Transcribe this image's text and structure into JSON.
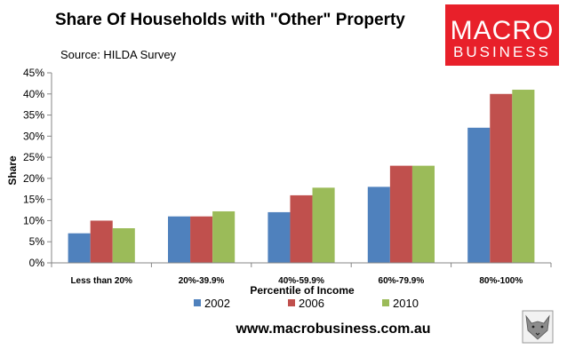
{
  "chart_data": {
    "type": "bar",
    "title": "Share Of Households with \"Other\" Property",
    "subtitle": "Source: HILDA Survey",
    "xlabel": "Percentile of Income",
    "ylabel": "Share",
    "categories": [
      "Less than 20%",
      "20%-39.9%",
      "40%-59.9%",
      "60%-79.9%",
      "80%-100%"
    ],
    "series": [
      {
        "name": "2002",
        "color": "#4F81BD",
        "values": [
          7,
          11,
          12,
          18,
          32
        ]
      },
      {
        "name": "2006",
        "color": "#C0504D",
        "values": [
          10,
          11,
          16,
          23,
          40
        ]
      },
      {
        "name": "2010",
        "color": "#9BBB59",
        "values": [
          8.2,
          12.2,
          17.8,
          23,
          41
        ]
      }
    ],
    "ylim": [
      0,
      45
    ],
    "yticks": [
      0,
      5,
      10,
      15,
      20,
      25,
      30,
      35,
      40,
      45
    ],
    "ytick_labels": [
      "0%",
      "5%",
      "10%",
      "15%",
      "20%",
      "25%",
      "30%",
      "35%",
      "40%",
      "45%"
    ],
    "grid": false,
    "legend_position": "bottom"
  },
  "footer": {
    "url": "www.macrobusiness.com.au"
  },
  "logo": {
    "line1": "MACRO",
    "line2": "BUSINESS",
    "bg_color": "#E8202A"
  }
}
